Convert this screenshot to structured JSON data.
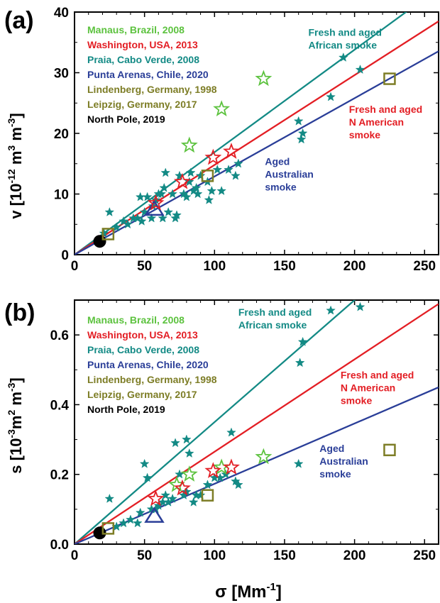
{
  "colors": {
    "african": "#138a85",
    "namerican": "#e31e24",
    "australian": "#2a3e98",
    "manaus": "#5cc23e",
    "praia": "#138a85",
    "olive": "#7d7d26",
    "black": "#000000"
  },
  "xlabel_main": "σ [Mm",
  "xlabel_sup": "-1",
  "xlabel_end": "]",
  "chart_data": [
    {
      "type": "scatter",
      "panel_label": "(a)",
      "ylabel_main": "v [10",
      "ylabel_sup1": "-12",
      "ylabel_mid1": " m",
      "ylabel_sup2": "3",
      "ylabel_mid2": " m",
      "ylabel_sup3": "-3",
      "ylabel_end": "]",
      "xlim": [
        0,
        260
      ],
      "ylim": [
        0,
        40
      ],
      "xticks": [
        "0",
        "50",
        "100",
        "150",
        "200",
        "250"
      ],
      "xtick_values": [
        0,
        50,
        100,
        150,
        200,
        250
      ],
      "yticks": [
        "0",
        "10",
        "20",
        "30",
        "40"
      ],
      "ytick_values": [
        0,
        10,
        20,
        30,
        40
      ],
      "legend": [
        {
          "text": "Manaus, Brazil, 2008",
          "color": "#5cc23e"
        },
        {
          "text": "Washington, USA, 2013",
          "color": "#e31e24"
        },
        {
          "text": "Praia, Cabo Verde, 2008",
          "color": "#138a85"
        },
        {
          "text": "Punta Arenas, Chile, 2020",
          "color": "#2a3e98"
        },
        {
          "text": "Lindenberg, Germany, 1998",
          "color": "#7d7d26"
        },
        {
          "text": "Leipzig, Germany, 2017",
          "color": "#7d7d26"
        },
        {
          "text": "North Pole, 2019",
          "color": "#000000"
        }
      ],
      "annotations": [
        {
          "lines": [
            "Fresh and aged",
            "African smoke"
          ],
          "color": "#138a85",
          "x": 167,
          "y": 36.1
        },
        {
          "lines": [
            "Fresh and aged",
            "N American",
            "smoke"
          ],
          "color": "#e31e24",
          "x": 196,
          "y": 23.4
        },
        {
          "lines": [
            "Aged",
            "Australian",
            "smoke"
          ],
          "color": "#2a3e98",
          "x": 136,
          "y": 14.8
        }
      ],
      "fit_lines": [
        {
          "name": "African",
          "slope": 0.169,
          "color": "#138a85"
        },
        {
          "name": "N American",
          "slope": 0.148,
          "color": "#e31e24"
        },
        {
          "name": "Australian",
          "slope": 0.129,
          "color": "#2a3e98"
        }
      ],
      "praia_stars": [
        [
          18,
          2.2
        ],
        [
          21,
          3.5
        ],
        [
          25,
          7
        ],
        [
          30,
          4.5
        ],
        [
          35,
          5.5
        ],
        [
          38,
          5
        ],
        [
          42,
          6
        ],
        [
          45,
          6
        ],
        [
          47,
          9.5
        ],
        [
          48,
          5.5
        ],
        [
          50,
          7
        ],
        [
          52,
          9.5
        ],
        [
          55,
          6
        ],
        [
          56,
          8
        ],
        [
          58,
          9
        ],
        [
          60,
          10
        ],
        [
          62,
          10
        ],
        [
          63,
          6
        ],
        [
          64,
          11
        ],
        [
          65,
          13.5
        ],
        [
          67,
          7
        ],
        [
          70,
          10
        ],
        [
          72,
          6
        ],
        [
          73,
          6.5
        ],
        [
          75,
          13
        ],
        [
          78,
          10
        ],
        [
          80,
          9.5
        ],
        [
          82,
          12
        ],
        [
          83,
          13.5
        ],
        [
          85,
          10.5
        ],
        [
          87,
          11
        ],
        [
          88,
          10
        ],
        [
          90,
          13
        ],
        [
          95,
          12
        ],
        [
          96,
          9
        ],
        [
          98,
          10.5
        ],
        [
          102,
          14
        ],
        [
          105,
          10.5
        ],
        [
          110,
          14
        ],
        [
          115,
          13
        ],
        [
          117,
          15
        ],
        [
          160,
          22
        ],
        [
          162,
          19
        ],
        [
          163,
          20
        ],
        [
          183,
          26
        ],
        [
          192,
          32.5
        ],
        [
          204,
          30.5
        ]
      ],
      "manaus_stars": [
        [
          82,
          18
        ],
        [
          105,
          24
        ],
        [
          135,
          29
        ]
      ],
      "washington_stars": [
        [
          58,
          8.5
        ],
        [
          77,
          12
        ],
        [
          99,
          16
        ],
        [
          112,
          17
        ]
      ],
      "squares": [
        [
          24,
          3.4
        ],
        [
          95,
          13
        ],
        [
          225,
          29
        ]
      ],
      "triangles": [
        [
          57,
          7.5
        ]
      ],
      "circles": [
        [
          18,
          2.2
        ]
      ]
    },
    {
      "type": "scatter",
      "panel_label": "(b)",
      "ylabel_main": "s [10",
      "ylabel_sup1": "-3",
      "ylabel_mid1": "m",
      "ylabel_sup2": "2",
      "ylabel_mid2": " m",
      "ylabel_sup3": "-3",
      "ylabel_end": "]",
      "xlim": [
        0,
        260
      ],
      "ylim": [
        0,
        0.7
      ],
      "xticks": [
        "0",
        "50",
        "100",
        "150",
        "200",
        "250"
      ],
      "xtick_values": [
        0,
        50,
        100,
        150,
        200,
        250
      ],
      "yticks": [
        "0.0",
        "0.2",
        "0.4",
        "0.6"
      ],
      "ytick_values": [
        0,
        0.2,
        0.4,
        0.6
      ],
      "legend": [
        {
          "text": "Manaus, Brazil, 2008",
          "color": "#5cc23e"
        },
        {
          "text": "Washington, USA, 2013",
          "color": "#e31e24"
        },
        {
          "text": "Praia, Cabo Verde, 2008",
          "color": "#138a85"
        },
        {
          "text": "Punta Arenas, Chile, 2020",
          "color": "#2a3e98"
        },
        {
          "text": "Lindenberg, Germany, 1998",
          "color": "#7d7d26"
        },
        {
          "text": "Leipzig, Germany, 2017",
          "color": "#7d7d26"
        },
        {
          "text": "North Pole, 2019",
          "color": "#000000"
        }
      ],
      "annotations": [
        {
          "lines": [
            "Fresh and aged",
            "African smoke"
          ],
          "color": "#138a85",
          "x": 117,
          "y": 0.655
        },
        {
          "lines": [
            "Fresh and aged",
            "N American",
            "smoke"
          ],
          "color": "#e31e24",
          "x": 190,
          "y": 0.475
        },
        {
          "lines": [
            "Aged",
            "Australian",
            "smoke"
          ],
          "color": "#2a3e98",
          "x": 175,
          "y": 0.265
        }
      ],
      "fit_lines": [
        {
          "name": "African",
          "slope": 0.0035,
          "color": "#138a85"
        },
        {
          "name": "N American",
          "slope": 0.00265,
          "color": "#e31e24"
        },
        {
          "name": "Australian",
          "slope": 0.00173,
          "color": "#2a3e98"
        }
      ],
      "praia_stars": [
        [
          18,
          0.03
        ],
        [
          25,
          0.13
        ],
        [
          30,
          0.05
        ],
        [
          35,
          0.06
        ],
        [
          40,
          0.07
        ],
        [
          45,
          0.06
        ],
        [
          47,
          0.09
        ],
        [
          50,
          0.23
        ],
        [
          52,
          0.19
        ],
        [
          55,
          0.1
        ],
        [
          58,
          0.1
        ],
        [
          60,
          0.11
        ],
        [
          63,
          0.12
        ],
        [
          65,
          0.14
        ],
        [
          67,
          0.12
        ],
        [
          70,
          0.13
        ],
        [
          72,
          0.29
        ],
        [
          75,
          0.2
        ],
        [
          78,
          0.14
        ],
        [
          80,
          0.3
        ],
        [
          80,
          0.15
        ],
        [
          82,
          0.26
        ],
        [
          85,
          0.12
        ],
        [
          87,
          0.14
        ],
        [
          90,
          0.14
        ],
        [
          95,
          0.17
        ],
        [
          100,
          0.19
        ],
        [
          104,
          0.19
        ],
        [
          108,
          0.2
        ],
        [
          112,
          0.32
        ],
        [
          115,
          0.18
        ],
        [
          117,
          0.17
        ],
        [
          160,
          0.23
        ],
        [
          161,
          0.52
        ],
        [
          163,
          0.58
        ],
        [
          183,
          0.67
        ],
        [
          204,
          0.68
        ]
      ],
      "manaus_stars": [
        [
          73,
          0.17
        ],
        [
          82,
          0.2
        ],
        [
          105,
          0.22
        ],
        [
          135,
          0.25
        ]
      ],
      "washington_stars": [
        [
          58,
          0.13
        ],
        [
          77,
          0.16
        ],
        [
          99,
          0.21
        ],
        [
          112,
          0.22
        ]
      ],
      "squares": [
        [
          24,
          0.045
        ],
        [
          95,
          0.14
        ],
        [
          225,
          0.27
        ]
      ],
      "triangles": [
        [
          57,
          0.08
        ]
      ],
      "circles": [
        [
          18,
          0.032
        ]
      ]
    }
  ]
}
